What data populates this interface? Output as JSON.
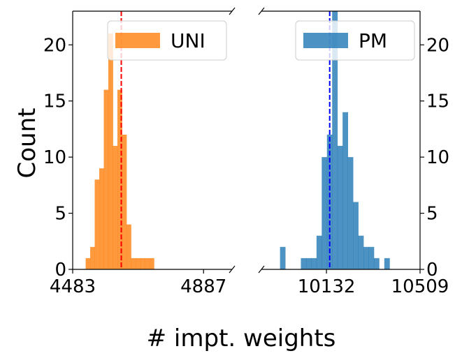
{
  "chart_data": {
    "type": "histogram",
    "ylabel": "Count",
    "xlabel": "# impt. weights",
    "ylim": [
      0,
      23
    ],
    "y_ticks": [
      0,
      5,
      10,
      15,
      20
    ],
    "y_tick_labels": [
      "0",
      "5",
      "10",
      "15",
      "20"
    ],
    "broken_x_axis": true,
    "panels": [
      {
        "name": "UNI",
        "color": "#ff7f0e",
        "mean_line_color": "#ff0000",
        "xlim": [
          4483,
          4975
        ],
        "x_ticks": [
          4483,
          4887
        ],
        "x_tick_labels": [
          "4483",
          "4887"
        ],
        "y_ticks_side": "left",
        "legend": "top-right",
        "bin_edges": [
          4523,
          4537,
          4551,
          4565,
          4579,
          4593,
          4607,
          4621,
          4635,
          4649,
          4663,
          4678,
          4692,
          4706,
          4720,
          4734,
          4748,
          4762,
          4776,
          4790,
          4804,
          4818
        ],
        "counts": [
          1,
          2,
          8,
          9,
          16,
          21,
          11,
          16,
          12,
          4,
          1,
          1,
          1,
          1,
          1,
          0,
          0,
          0,
          0,
          0,
          0
        ],
        "mean_line": 4633
      },
      {
        "name": "PM",
        "color": "#1f77b4",
        "mean_line_color": "#0000ff",
        "xlim": [
          9870,
          10509
        ],
        "x_ticks": [
          10132,
          10509
        ],
        "x_tick_labels": [
          "10132",
          "10509"
        ],
        "y_ticks_side": "right",
        "legend": "top-right",
        "bin_edges": [
          9945,
          9966,
          9987,
          10008,
          10029,
          10050,
          10071,
          10092,
          10113,
          10134,
          10155,
          10176,
          10197,
          10218,
          10239,
          10260,
          10281,
          10302,
          10323,
          10344,
          10365,
          10386,
          10407,
          10428,
          10449,
          10470,
          10491
        ],
        "counts": [
          2,
          0,
          0,
          0,
          1,
          1,
          1,
          3,
          10,
          12,
          23,
          11,
          14,
          10,
          6,
          3,
          2,
          2,
          1,
          0,
          1,
          0,
          0,
          0,
          0,
          0
        ],
        "mean_line": 10145
      }
    ]
  }
}
